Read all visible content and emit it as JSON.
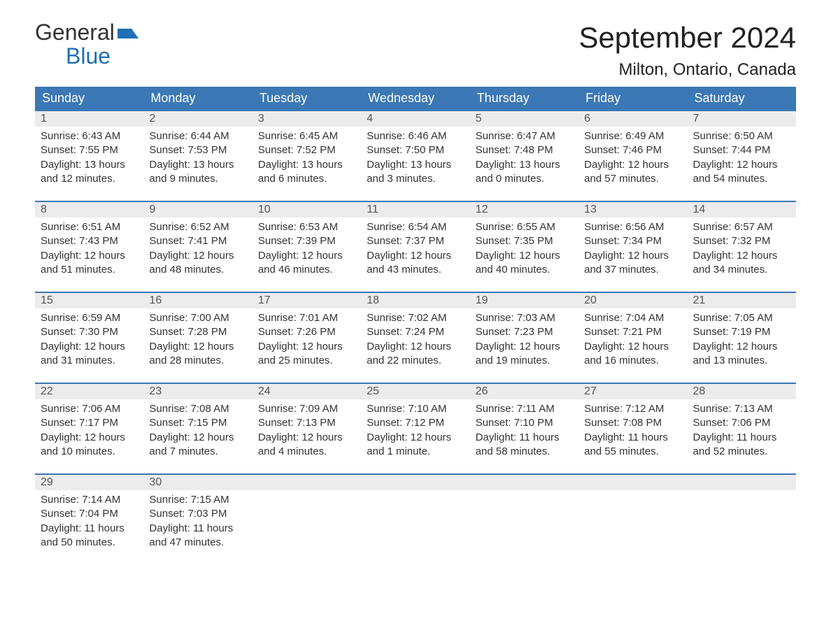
{
  "brand": {
    "line1": "General",
    "line2": "Blue",
    "flag_color": "#1f6fb2"
  },
  "title": "September 2024",
  "location": "Milton, Ontario, Canada",
  "colors": {
    "header_bg": "#3b78b5",
    "header_text": "#ffffff",
    "row_border": "#3b78b5",
    "daynum_bg": "#ececec",
    "text": "#333333",
    "background": "#ffffff"
  },
  "typography": {
    "title_fontsize": 42,
    "location_fontsize": 24,
    "weekday_fontsize": 18,
    "body_fontsize": 15
  },
  "weekdays": [
    "Sunday",
    "Monday",
    "Tuesday",
    "Wednesday",
    "Thursday",
    "Friday",
    "Saturday"
  ],
  "weeks": [
    [
      {
        "day": "1",
        "sunrise": "Sunrise: 6:43 AM",
        "sunset": "Sunset: 7:55 PM",
        "daylight1": "Daylight: 13 hours",
        "daylight2": "and 12 minutes."
      },
      {
        "day": "2",
        "sunrise": "Sunrise: 6:44 AM",
        "sunset": "Sunset: 7:53 PM",
        "daylight1": "Daylight: 13 hours",
        "daylight2": "and 9 minutes."
      },
      {
        "day": "3",
        "sunrise": "Sunrise: 6:45 AM",
        "sunset": "Sunset: 7:52 PM",
        "daylight1": "Daylight: 13 hours",
        "daylight2": "and 6 minutes."
      },
      {
        "day": "4",
        "sunrise": "Sunrise: 6:46 AM",
        "sunset": "Sunset: 7:50 PM",
        "daylight1": "Daylight: 13 hours",
        "daylight2": "and 3 minutes."
      },
      {
        "day": "5",
        "sunrise": "Sunrise: 6:47 AM",
        "sunset": "Sunset: 7:48 PM",
        "daylight1": "Daylight: 13 hours",
        "daylight2": "and 0 minutes."
      },
      {
        "day": "6",
        "sunrise": "Sunrise: 6:49 AM",
        "sunset": "Sunset: 7:46 PM",
        "daylight1": "Daylight: 12 hours",
        "daylight2": "and 57 minutes."
      },
      {
        "day": "7",
        "sunrise": "Sunrise: 6:50 AM",
        "sunset": "Sunset: 7:44 PM",
        "daylight1": "Daylight: 12 hours",
        "daylight2": "and 54 minutes."
      }
    ],
    [
      {
        "day": "8",
        "sunrise": "Sunrise: 6:51 AM",
        "sunset": "Sunset: 7:43 PM",
        "daylight1": "Daylight: 12 hours",
        "daylight2": "and 51 minutes."
      },
      {
        "day": "9",
        "sunrise": "Sunrise: 6:52 AM",
        "sunset": "Sunset: 7:41 PM",
        "daylight1": "Daylight: 12 hours",
        "daylight2": "and 48 minutes."
      },
      {
        "day": "10",
        "sunrise": "Sunrise: 6:53 AM",
        "sunset": "Sunset: 7:39 PM",
        "daylight1": "Daylight: 12 hours",
        "daylight2": "and 46 minutes."
      },
      {
        "day": "11",
        "sunrise": "Sunrise: 6:54 AM",
        "sunset": "Sunset: 7:37 PM",
        "daylight1": "Daylight: 12 hours",
        "daylight2": "and 43 minutes."
      },
      {
        "day": "12",
        "sunrise": "Sunrise: 6:55 AM",
        "sunset": "Sunset: 7:35 PM",
        "daylight1": "Daylight: 12 hours",
        "daylight2": "and 40 minutes."
      },
      {
        "day": "13",
        "sunrise": "Sunrise: 6:56 AM",
        "sunset": "Sunset: 7:34 PM",
        "daylight1": "Daylight: 12 hours",
        "daylight2": "and 37 minutes."
      },
      {
        "day": "14",
        "sunrise": "Sunrise: 6:57 AM",
        "sunset": "Sunset: 7:32 PM",
        "daylight1": "Daylight: 12 hours",
        "daylight2": "and 34 minutes."
      }
    ],
    [
      {
        "day": "15",
        "sunrise": "Sunrise: 6:59 AM",
        "sunset": "Sunset: 7:30 PM",
        "daylight1": "Daylight: 12 hours",
        "daylight2": "and 31 minutes."
      },
      {
        "day": "16",
        "sunrise": "Sunrise: 7:00 AM",
        "sunset": "Sunset: 7:28 PM",
        "daylight1": "Daylight: 12 hours",
        "daylight2": "and 28 minutes."
      },
      {
        "day": "17",
        "sunrise": "Sunrise: 7:01 AM",
        "sunset": "Sunset: 7:26 PM",
        "daylight1": "Daylight: 12 hours",
        "daylight2": "and 25 minutes."
      },
      {
        "day": "18",
        "sunrise": "Sunrise: 7:02 AM",
        "sunset": "Sunset: 7:24 PM",
        "daylight1": "Daylight: 12 hours",
        "daylight2": "and 22 minutes."
      },
      {
        "day": "19",
        "sunrise": "Sunrise: 7:03 AM",
        "sunset": "Sunset: 7:23 PM",
        "daylight1": "Daylight: 12 hours",
        "daylight2": "and 19 minutes."
      },
      {
        "day": "20",
        "sunrise": "Sunrise: 7:04 AM",
        "sunset": "Sunset: 7:21 PM",
        "daylight1": "Daylight: 12 hours",
        "daylight2": "and 16 minutes."
      },
      {
        "day": "21",
        "sunrise": "Sunrise: 7:05 AM",
        "sunset": "Sunset: 7:19 PM",
        "daylight1": "Daylight: 12 hours",
        "daylight2": "and 13 minutes."
      }
    ],
    [
      {
        "day": "22",
        "sunrise": "Sunrise: 7:06 AM",
        "sunset": "Sunset: 7:17 PM",
        "daylight1": "Daylight: 12 hours",
        "daylight2": "and 10 minutes."
      },
      {
        "day": "23",
        "sunrise": "Sunrise: 7:08 AM",
        "sunset": "Sunset: 7:15 PM",
        "daylight1": "Daylight: 12 hours",
        "daylight2": "and 7 minutes."
      },
      {
        "day": "24",
        "sunrise": "Sunrise: 7:09 AM",
        "sunset": "Sunset: 7:13 PM",
        "daylight1": "Daylight: 12 hours",
        "daylight2": "and 4 minutes."
      },
      {
        "day": "25",
        "sunrise": "Sunrise: 7:10 AM",
        "sunset": "Sunset: 7:12 PM",
        "daylight1": "Daylight: 12 hours",
        "daylight2": "and 1 minute."
      },
      {
        "day": "26",
        "sunrise": "Sunrise: 7:11 AM",
        "sunset": "Sunset: 7:10 PM",
        "daylight1": "Daylight: 11 hours",
        "daylight2": "and 58 minutes."
      },
      {
        "day": "27",
        "sunrise": "Sunrise: 7:12 AM",
        "sunset": "Sunset: 7:08 PM",
        "daylight1": "Daylight: 11 hours",
        "daylight2": "and 55 minutes."
      },
      {
        "day": "28",
        "sunrise": "Sunrise: 7:13 AM",
        "sunset": "Sunset: 7:06 PM",
        "daylight1": "Daylight: 11 hours",
        "daylight2": "and 52 minutes."
      }
    ],
    [
      {
        "day": "29",
        "sunrise": "Sunrise: 7:14 AM",
        "sunset": "Sunset: 7:04 PM",
        "daylight1": "Daylight: 11 hours",
        "daylight2": "and 50 minutes."
      },
      {
        "day": "30",
        "sunrise": "Sunrise: 7:15 AM",
        "sunset": "Sunset: 7:03 PM",
        "daylight1": "Daylight: 11 hours",
        "daylight2": "and 47 minutes."
      },
      null,
      null,
      null,
      null,
      null
    ]
  ]
}
